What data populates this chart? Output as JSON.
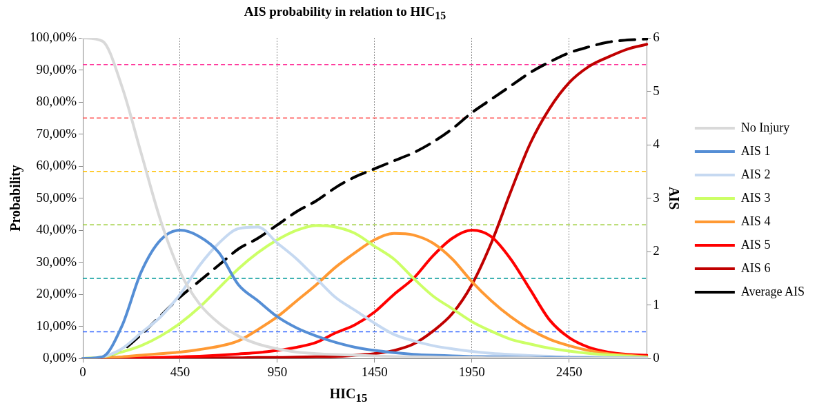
{
  "chart_data": {
    "type": "line",
    "title": "AIS probability in relation to HIC$_{15}$",
    "xlabel": "HIC$_{15}$",
    "ylabel": "Probability",
    "y2label": "AIS",
    "categories": [
      "0",
      null,
      null,
      null,
      null,
      "450",
      null,
      null,
      null,
      null,
      "950",
      null,
      null,
      null,
      null,
      "1450",
      null,
      null,
      null,
      null,
      "1950",
      null,
      null,
      null,
      null,
      "2450",
      null,
      null,
      null,
      null
    ],
    "ylim": [
      0,
      100
    ],
    "yticks": [
      {
        "value": 0,
        "label": "0,00%"
      },
      {
        "value": 10,
        "label": "10,00%"
      },
      {
        "value": 20,
        "label": "20,00%"
      },
      {
        "value": 30,
        "label": "30,00%"
      },
      {
        "value": 40,
        "label": "40,00%"
      },
      {
        "value": 50,
        "label": "50,00%"
      },
      {
        "value": 60,
        "label": "60,00%"
      },
      {
        "value": 70,
        "label": "70,00%"
      },
      {
        "value": 80,
        "label": "80,00%"
      },
      {
        "value": 90,
        "label": "90,00%"
      },
      {
        "value": 100,
        "label": "100,00%"
      }
    ],
    "y2lim": [
      0,
      6
    ],
    "y2ticks": [
      0,
      1,
      2,
      3,
      4,
      5,
      6
    ],
    "grid": "x",
    "legend": "right",
    "marker": "none",
    "series": [
      {
        "name": "No Injury",
        "color": "#d9d9d9",
        "line_style": "solid",
        "values": [
          100,
          99,
          85,
          64,
          43,
          27,
          17,
          11,
          7,
          4.5,
          3,
          2,
          1.5,
          1.2,
          1,
          0.8,
          0.6,
          0.5,
          0.4,
          0.3,
          0.3,
          0.2,
          0.2,
          0.2,
          0.1,
          0.1,
          0.1,
          0.1,
          0.1,
          0.1
        ]
      },
      {
        "name": "AIS 1",
        "color": "#558ed5",
        "line_style": "solid",
        "values": [
          0,
          0.5,
          10,
          27,
          37,
          40,
          38,
          33,
          23,
          18,
          13,
          9.5,
          7,
          5,
          3.5,
          2.5,
          1.8,
          1.3,
          1,
          0.8,
          0.6,
          0.5,
          0.4,
          0.3,
          0.3,
          0.2,
          0.2,
          0.1,
          0.1,
          0.1
        ]
      },
      {
        "name": "AIS 2",
        "color": "#c6d9f1",
        "line_style": "solid",
        "values": [
          0,
          0.5,
          3,
          8,
          13,
          20,
          29,
          36,
          40.5,
          41,
          36,
          31,
          25,
          19,
          15,
          11,
          7.5,
          5.5,
          4,
          3,
          2.2,
          1.6,
          1.2,
          0.9,
          0.7,
          0.5,
          0.4,
          0.3,
          0.2,
          0.1
        ]
      },
      {
        "name": "AIS 3",
        "color": "#ccff66",
        "line_style": "solid",
        "values": [
          0,
          0.5,
          2,
          4,
          7,
          11,
          16,
          22,
          28,
          33,
          37,
          40,
          41.5,
          41,
          39,
          35,
          31,
          25,
          19.5,
          15.5,
          11.5,
          8.5,
          6,
          4.5,
          3.2,
          2.3,
          1.6,
          1.1,
          0.7,
          0.4
        ]
      },
      {
        "name": "AIS 4",
        "color": "#ff9933",
        "line_style": "solid",
        "values": [
          0,
          0.2,
          0.5,
          1,
          1.5,
          2,
          2.8,
          3.8,
          5.5,
          9,
          13,
          18,
          23,
          28.5,
          33,
          37,
          39,
          38.5,
          36,
          31,
          24,
          18,
          13,
          9,
          6,
          4,
          2.5,
          1.5,
          1,
          0.5
        ]
      },
      {
        "name": "AIS 5",
        "color": "#ff0000",
        "line_style": "solid",
        "values": [
          0,
          0,
          0.1,
          0.2,
          0.3,
          0.5,
          0.7,
          1,
          1.4,
          1.8,
          2.5,
          3.5,
          5,
          8,
          10.5,
          14.5,
          20,
          25,
          32,
          37.5,
          40,
          38,
          31,
          21.5,
          12,
          6.5,
          3.5,
          2,
          1.3,
          1
        ]
      },
      {
        "name": "AIS 6",
        "color": "#c00000",
        "line_style": "solid",
        "values": [
          0,
          0,
          0,
          0,
          0,
          0.1,
          0.1,
          0.2,
          0.2,
          0.3,
          0.3,
          0.4,
          0.5,
          0.6,
          1,
          1.5,
          2.5,
          4.5,
          8.5,
          14,
          23,
          36,
          52,
          67,
          78,
          86,
          91,
          94,
          96.5,
          98
        ]
      },
      {
        "name": "Average AIS",
        "color": "#000000",
        "line_style": "dashed",
        "axis": "y2",
        "values": [
          0,
          0.02,
          0.15,
          0.45,
          0.8,
          1.15,
          1.45,
          1.75,
          2.05,
          2.25,
          2.5,
          2.75,
          2.95,
          3.2,
          3.4,
          3.55,
          3.7,
          3.85,
          4.05,
          4.3,
          4.6,
          4.85,
          5.1,
          5.35,
          5.55,
          5.72,
          5.83,
          5.92,
          5.96,
          5.98
        ]
      }
    ],
    "ref_lines": [
      {
        "axis": "y2",
        "value": 5.5,
        "color": "#ff3399",
        "line_style": "dashed"
      },
      {
        "axis": "y2",
        "value": 4.5,
        "color": "#ff5050",
        "line_style": "dashed"
      },
      {
        "axis": "y2",
        "value": 3.5,
        "color": "#ffc000",
        "line_style": "dashed"
      },
      {
        "axis": "y2",
        "value": 2.5,
        "color": "#99cc33",
        "line_style": "dashed"
      },
      {
        "axis": "y2",
        "value": 1.5,
        "color": "#009999",
        "line_style": "dashed"
      },
      {
        "axis": "y2",
        "value": 0.5,
        "color": "#3366ff",
        "line_style": "dashed"
      }
    ]
  }
}
